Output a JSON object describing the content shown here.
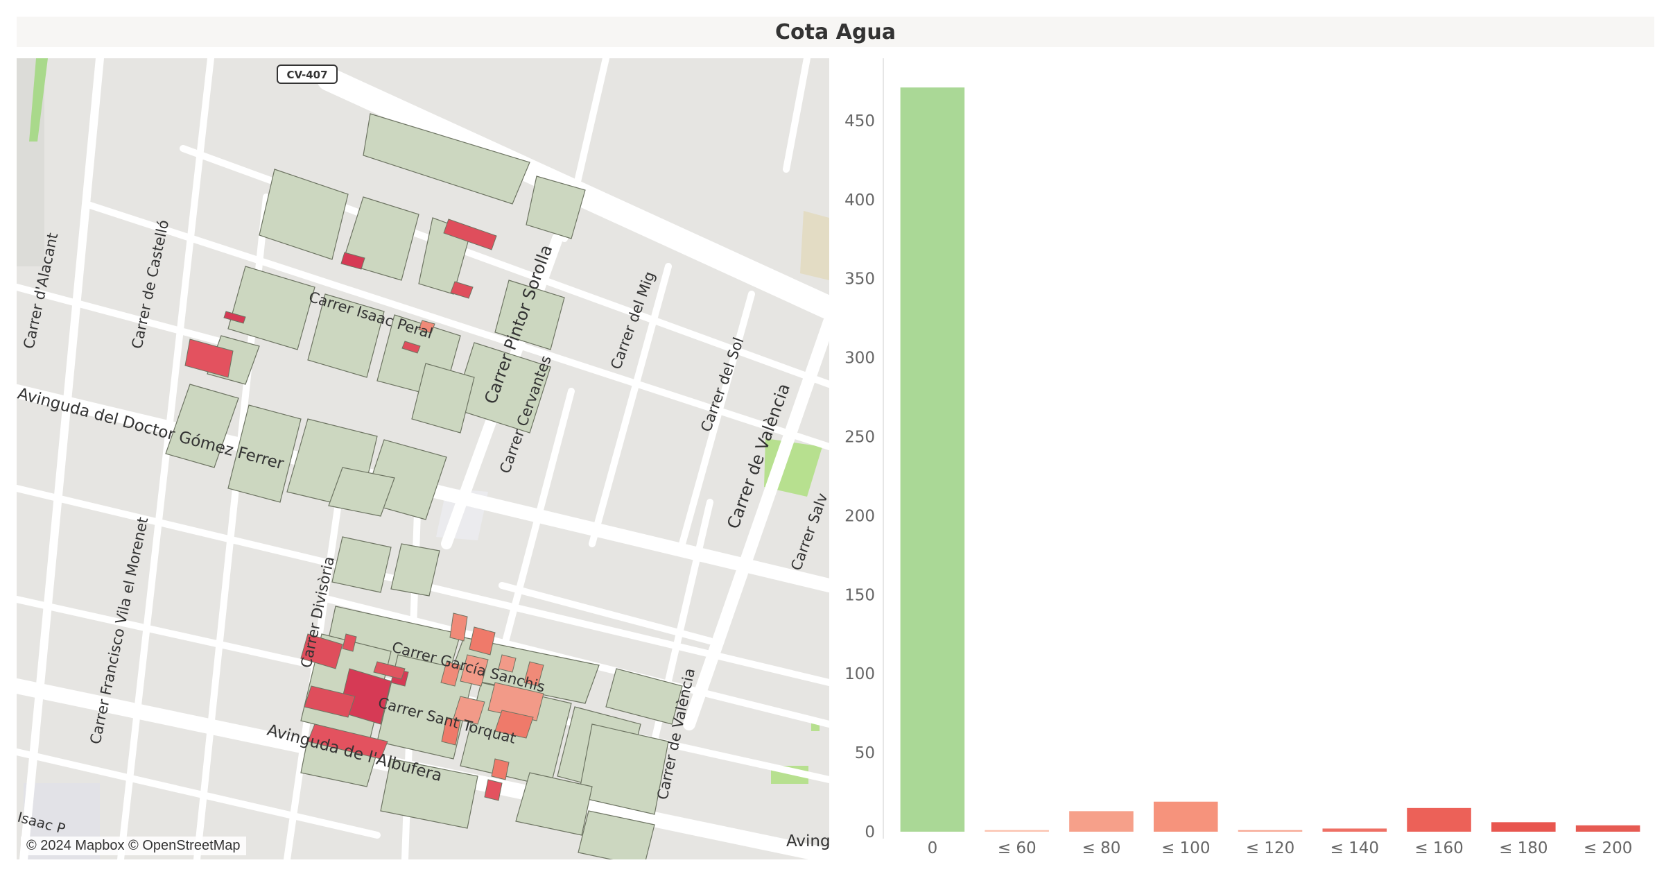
{
  "dashboard": {
    "title": "Cota Agua"
  },
  "map": {
    "attribution": "© 2024 Mapbox © OpenStreetMap",
    "shield": "CV-407",
    "street_labels": [
      "Carrer d'Alacant",
      "Carrer de Castelló",
      "Carrer Isaac Peral",
      "Carrer Pintor Sorolla",
      "Carrer del Mig",
      "Carrer Cervantes",
      "Carrer del Sol",
      "Carrer de València",
      "Avinguda del Doctor Gómez Ferrer",
      "Carrer Divisòria",
      "Carrer Francisco Vila el Morenet",
      "Carrer García Sanchis",
      "Carrer Sant Torquat",
      "Avinguda de l'Albufera",
      "Carrer de València",
      "Carrer Salv",
      "Aving",
      "Isaac P"
    ],
    "colors": {
      "land": "#e6e5e2",
      "road": "#ffffff",
      "parcel": "#ccd7c0",
      "park": "#b7e08f"
    }
  },
  "chart_data": {
    "type": "bar",
    "categories": [
      "0",
      "≤ 60",
      "≤ 80",
      "≤ 100",
      "≤ 120",
      "≤ 140",
      "≤ 160",
      "≤ 180",
      "≤ 200"
    ],
    "values": [
      471,
      1,
      13,
      19,
      1,
      2,
      15,
      6,
      4
    ],
    "colors": [
      "#aad896",
      "#fbc2ae",
      "#f6a08a",
      "#f6937c",
      "#f7a893",
      "#ee6f64",
      "#ec6158",
      "#e8564f",
      "#e65a52"
    ],
    "ylim": [
      0,
      475
    ],
    "yticks": [
      0,
      50,
      100,
      150,
      200,
      250,
      300,
      350,
      400,
      450
    ],
    "grid": false
  }
}
